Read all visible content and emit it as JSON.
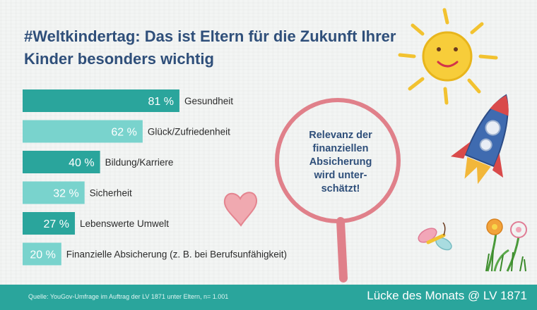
{
  "title_lines": [
    "#Weltkindertag: Das ist Eltern für die Zukunft Ihrer",
    "Kinder besonders wichtig"
  ],
  "callout_lines": [
    "Relevanz der",
    "finanziellen",
    "Absicherung",
    "wird unter-",
    "schätzt!"
  ],
  "footer": {
    "source": "Quelle: YouGov-Umfrage im Auftrag der LV 1871 unter Eltern, n= 1.001",
    "brand": "Lücke des Monats @ LV 1871"
  },
  "colors": {
    "title": "#2f4f7a",
    "bar_dark": "#2aa59c",
    "bar_light": "#79d3cd",
    "footer": "#2aa59c",
    "magnifier": "#e0808a"
  },
  "chart_data": {
    "type": "bar",
    "orientation": "horizontal",
    "categories": [
      "Gesundheit",
      "Glück/Zufriedenheit",
      "Bildung/Karriere",
      "Sicherheit",
      "Lebenswerte Umwelt",
      "Finanzielle Absicherung (z. B. bei Berufsunfähigkeit)"
    ],
    "values": [
      81,
      62,
      40,
      32,
      27,
      20
    ],
    "value_labels": [
      "81 %",
      "62 %",
      "40 %",
      "32 %",
      "27 %",
      "20 %"
    ],
    "unit": "%",
    "xlim": [
      0,
      100
    ]
  }
}
